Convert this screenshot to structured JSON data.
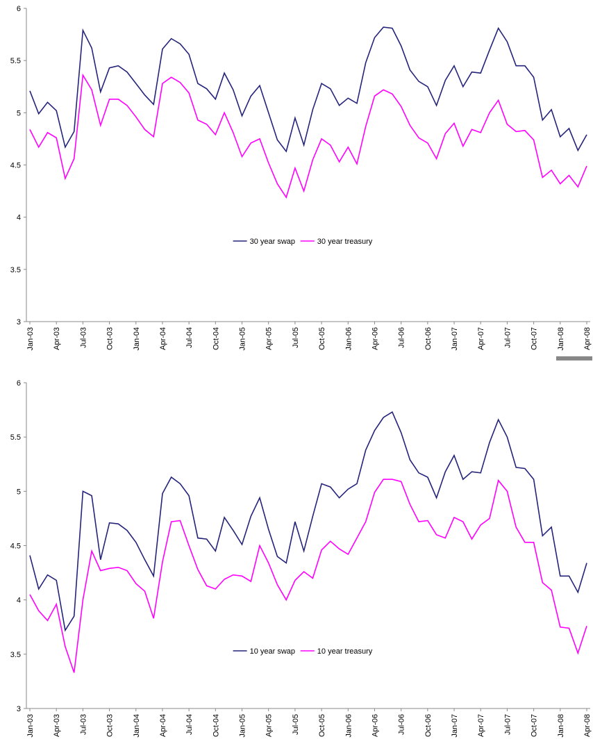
{
  "chart_data": [
    {
      "type": "line",
      "categories": [
        "Jan-03",
        null,
        null,
        "Apr-03",
        null,
        null,
        "Jul-03",
        null,
        null,
        "Oct-03",
        null,
        null,
        "Jan-04",
        null,
        null,
        "Apr-04",
        null,
        null,
        "Jul-04",
        null,
        null,
        "Oct-04",
        null,
        null,
        "Jan-05",
        null,
        null,
        "Apr-05",
        null,
        null,
        "Jul-05",
        null,
        null,
        "Oct-05",
        null,
        null,
        "Jan-06",
        null,
        null,
        "Apr-06",
        null,
        null,
        "Jul-06",
        null,
        null,
        "Oct-06",
        null,
        null,
        "Jan-07",
        null,
        null,
        "Apr-07",
        null,
        null,
        "Jul-07",
        null,
        null,
        "Oct-07",
        null,
        null,
        "Jan-08",
        null,
        null,
        "Apr-08"
      ],
      "series": [
        {
          "name": "30 year swap",
          "color": "#24237a",
          "values": [
            5.21,
            4.99,
            5.1,
            5.02,
            4.67,
            4.82,
            5.79,
            5.62,
            5.2,
            5.43,
            5.45,
            5.39,
            5.28,
            5.17,
            5.08,
            5.61,
            5.71,
            5.66,
            5.56,
            5.28,
            5.23,
            5.13,
            5.38,
            5.22,
            4.97,
            5.16,
            5.26,
            5.0,
            4.74,
            4.63,
            4.95,
            4.69,
            5.03,
            5.28,
            5.23,
            5.07,
            5.14,
            5.09,
            5.48,
            5.72,
            5.82,
            5.81,
            5.64,
            5.41,
            5.3,
            5.25,
            5.07,
            5.31,
            5.45,
            5.25,
            5.39,
            5.38,
            5.6,
            5.81,
            5.68,
            5.45,
            5.45,
            5.34,
            4.93,
            5.03,
            4.77,
            4.85,
            4.64,
            4.79
          ]
        },
        {
          "name": "30 year treasury",
          "color": "#ff00ff",
          "values": [
            4.84,
            4.67,
            4.81,
            4.76,
            4.37,
            4.56,
            5.36,
            5.22,
            4.88,
            5.13,
            5.13,
            5.07,
            4.96,
            4.84,
            4.77,
            5.28,
            5.34,
            5.29,
            5.19,
            4.93,
            4.89,
            4.79,
            5.0,
            4.81,
            4.58,
            4.71,
            4.75,
            4.52,
            4.32,
            4.19,
            4.47,
            4.25,
            4.55,
            4.75,
            4.69,
            4.53,
            4.67,
            4.51,
            4.87,
            5.16,
            5.22,
            5.18,
            5.06,
            4.88,
            4.76,
            4.71,
            4.56,
            4.8,
            4.9,
            4.68,
            4.84,
            4.81,
            5.0,
            5.12,
            4.89,
            4.82,
            4.83,
            4.74,
            4.38,
            4.45,
            4.32,
            4.4,
            4.29,
            4.49
          ]
        }
      ],
      "ylim": [
        3,
        6
      ],
      "yticks": [
        3,
        3.5,
        4,
        4.5,
        5,
        5.5,
        6
      ],
      "legend": "center"
    },
    {
      "type": "line",
      "categories": [
        "Jan-03",
        null,
        null,
        "Apr-03",
        null,
        null,
        "Jul-03",
        null,
        null,
        "Oct-03",
        null,
        null,
        "Jan-04",
        null,
        null,
        "Apr-04",
        null,
        null,
        "Jul-04",
        null,
        null,
        "Oct-04",
        null,
        null,
        "Jan-05",
        null,
        null,
        "Apr-05",
        null,
        null,
        "Jul-05",
        null,
        null,
        "Oct-05",
        null,
        null,
        "Jan-06",
        null,
        null,
        "Apr-06",
        null,
        null,
        "Jul-06",
        null,
        null,
        "Oct-06",
        null,
        null,
        "Jan-07",
        null,
        null,
        "Apr-07",
        null,
        null,
        "Jul-07",
        null,
        null,
        "Oct-07",
        null,
        null,
        "Jan-08",
        null,
        null,
        "Apr-08"
      ],
      "series": [
        {
          "name": "10 year swap",
          "color": "#24237a",
          "values": [
            4.41,
            4.1,
            4.23,
            4.18,
            3.72,
            3.85,
            5.0,
            4.96,
            4.37,
            4.71,
            4.7,
            4.64,
            4.53,
            4.37,
            4.22,
            4.98,
            5.13,
            5.07,
            4.96,
            4.57,
            4.56,
            4.45,
            4.76,
            4.64,
            4.51,
            4.77,
            4.94,
            4.65,
            4.4,
            4.34,
            4.72,
            4.45,
            4.77,
            5.07,
            5.04,
            4.94,
            5.02,
            5.07,
            5.38,
            5.56,
            5.68,
            5.73,
            5.54,
            5.29,
            5.17,
            5.13,
            4.94,
            5.18,
            5.33,
            5.11,
            5.18,
            5.17,
            5.45,
            5.66,
            5.5,
            5.22,
            5.21,
            5.11,
            4.59,
            4.67,
            4.22,
            4.22,
            4.07,
            4.34
          ]
        },
        {
          "name": "10 year treasury",
          "color": "#ff00ff",
          "values": [
            4.05,
            3.9,
            3.81,
            3.96,
            3.57,
            3.33,
            4.0,
            4.45,
            4.27,
            4.29,
            4.3,
            4.27,
            4.15,
            4.08,
            3.83,
            4.35,
            4.72,
            4.73,
            4.5,
            4.28,
            4.13,
            4.1,
            4.19,
            4.23,
            4.22,
            4.17,
            4.5,
            4.34,
            4.14,
            4.0,
            4.18,
            4.26,
            4.2,
            4.46,
            4.54,
            4.47,
            4.42,
            4.57,
            4.72,
            4.99,
            5.11,
            5.11,
            5.09,
            4.88,
            4.72,
            4.73,
            4.6,
            4.57,
            4.76,
            4.72,
            4.56,
            4.69,
            4.75,
            5.1,
            5.0,
            4.67,
            4.53,
            4.53,
            4.16,
            4.09,
            3.75,
            3.74,
            3.51,
            3.76
          ]
        }
      ],
      "ylim": [
        3,
        6
      ],
      "yticks": [
        3,
        3.5,
        4,
        4.5,
        5,
        5.5,
        6
      ],
      "legend": "center"
    }
  ]
}
